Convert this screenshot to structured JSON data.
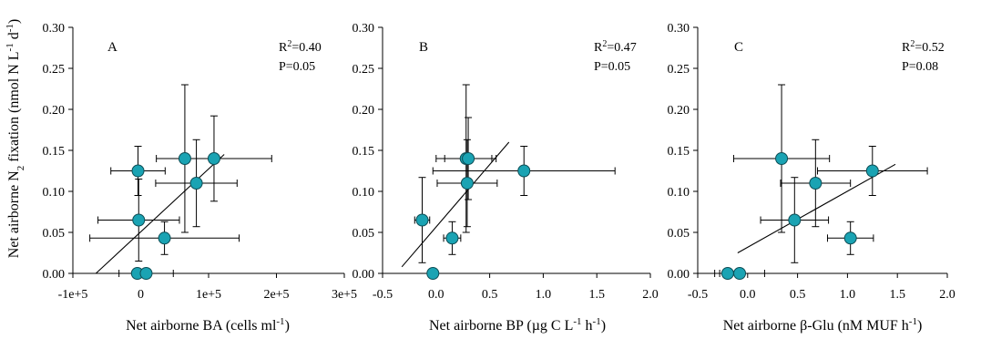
{
  "figure": {
    "ylabel_main": "Net airborne N",
    "ylabel_sub": "2",
    "ylabel_mid": " fixation (nmol N L",
    "ylabel_sup1": "-1",
    "ylabel_mid2": " d",
    "ylabel_sup2": "-1",
    "ylabel_end": ")"
  },
  "colors": {
    "marker_fill": "#1aa3b3",
    "marker_edge": "#0d4d55",
    "line": "#000000"
  },
  "chart_data": [
    {
      "type": "scatter",
      "panel": "A",
      "stats": {
        "r2_label": "R",
        "r2_sup": "2",
        "r2_value": "=0.40",
        "p": "P=0.05"
      },
      "xlabel": {
        "prefix": "Net airborne BA (cells ml",
        "sup": "-1",
        "suffix": ")"
      },
      "xlim": [
        -100000,
        300000
      ],
      "ylim": [
        0,
        0.3
      ],
      "xticks": [
        -100000,
        0,
        100000,
        200000,
        300000
      ],
      "xtick_labels": [
        "-1e+5",
        "0",
        "1e+5",
        "2e+5",
        "3e+5"
      ],
      "yticks": [
        0,
        0.05,
        0.1,
        0.15,
        0.2,
        0.25,
        0.3
      ],
      "ytick_labels": [
        "0.00",
        "0.05",
        "0.10",
        "0.15",
        "0.20",
        "0.25",
        "0.30"
      ],
      "points": [
        {
          "x": -4000,
          "y": 0.125,
          "xerr": 40000,
          "yerr": 0.03
        },
        {
          "x": -3000,
          "y": 0.065,
          "xerr": 60000,
          "yerr": 0.05
        },
        {
          "x": -5000,
          "y": 0.0,
          "xerr": 0,
          "yerr": 0
        },
        {
          "x": 8000,
          "y": 0.0,
          "xerr": 40000,
          "yerr": 0
        },
        {
          "x": 35000,
          "y": 0.043,
          "xerr": 110000,
          "yerr": 0.02
        },
        {
          "x": 65000,
          "y": 0.14,
          "xerr": 0,
          "yerr": 0.09
        },
        {
          "x": 82000,
          "y": 0.11,
          "xerr": 60000,
          "yerr": 0.053
        },
        {
          "x": 108000,
          "y": 0.14,
          "xerr": 85000,
          "yerr": 0.052
        }
      ],
      "fit": {
        "x": [
          -66000,
          123000
        ],
        "y": [
          0.0,
          0.145
        ]
      }
    },
    {
      "type": "scatter",
      "panel": "B",
      "stats": {
        "r2_label": "R",
        "r2_sup": "2",
        "r2_value": "=0.47",
        "p": "P=0.05"
      },
      "xlabel": {
        "prefix": "Net airborne BP (",
        "mu": "µg C L",
        "sup": "-1",
        "mid": " h",
        "sup2": "-1",
        "suffix": ")"
      },
      "xlim": [
        -0.5,
        2.0
      ],
      "ylim": [
        0,
        0.3
      ],
      "xticks": [
        -0.5,
        0.0,
        0.5,
        1.0,
        1.5,
        2.0
      ],
      "xtick_labels": [
        "-0.5",
        "0.0",
        "0.5",
        "1.0",
        "1.5",
        "2.0"
      ],
      "yticks": [
        0,
        0.05,
        0.1,
        0.15,
        0.2,
        0.25,
        0.3
      ],
      "ytick_labels": [
        "0.00",
        "0.05",
        "0.10",
        "0.15",
        "0.20",
        "0.25",
        "0.30"
      ],
      "points": [
        {
          "x": -0.13,
          "y": 0.065,
          "xerr": 0.07,
          "yerr": 0.052
        },
        {
          "x": -0.03,
          "y": 0.0,
          "xerr": 0,
          "yerr": 0
        },
        {
          "x": 0.15,
          "y": 0.043,
          "xerr": 0.08,
          "yerr": 0.02
        },
        {
          "x": 0.28,
          "y": 0.14,
          "xerr": 0.28,
          "yerr": 0.09
        },
        {
          "x": 0.3,
          "y": 0.14,
          "xerr": 0.22,
          "yerr": 0.05
        },
        {
          "x": 0.29,
          "y": 0.11,
          "xerr": 0.28,
          "yerr": 0.053
        },
        {
          "x": 0.82,
          "y": 0.125,
          "xerr": 0.85,
          "yerr": 0.03
        }
      ],
      "fit": {
        "x": [
          -0.32,
          0.68
        ],
        "y": [
          0.008,
          0.16
        ]
      }
    },
    {
      "type": "scatter",
      "panel": "C",
      "stats": {
        "r2_label": "R",
        "r2_sup": "2",
        "r2_value": "=0.52",
        "p": "P=0.08"
      },
      "xlabel": {
        "prefix": "Net airborne ",
        "beta": "β-Glu (nM MUF h",
        "sup": "-1",
        "suffix": ")"
      },
      "xlim": [
        -0.5,
        2.0
      ],
      "ylim": [
        0,
        0.3
      ],
      "xticks": [
        -0.5,
        0.0,
        0.5,
        1.0,
        1.5,
        2.0
      ],
      "xtick_labels": [
        "-0.5",
        "0.0",
        "0.5",
        "1.0",
        "1.5",
        "2.0"
      ],
      "yticks": [
        0,
        0.05,
        0.1,
        0.15,
        0.2,
        0.25,
        0.3
      ],
      "ytick_labels": [
        "0.00",
        "0.05",
        "0.10",
        "0.15",
        "0.20",
        "0.25",
        "0.30"
      ],
      "points": [
        {
          "x": -0.2,
          "y": 0.0,
          "xerr": 0.08,
          "yerr": 0
        },
        {
          "x": -0.08,
          "y": 0.0,
          "xerr": 0.25,
          "yerr": 0
        },
        {
          "x": 0.47,
          "y": 0.065,
          "xerr": 0.34,
          "yerr": 0.052
        },
        {
          "x": 0.34,
          "y": 0.14,
          "xerr": 0.48,
          "yerr": 0.09
        },
        {
          "x": 0.68,
          "y": 0.11,
          "xerr": 0.35,
          "yerr": 0.053
        },
        {
          "x": 1.03,
          "y": 0.043,
          "xerr": 0.23,
          "yerr": 0.02
        },
        {
          "x": 1.25,
          "y": 0.125,
          "xerr": 0.55,
          "yerr": 0.03
        }
      ],
      "fit": {
        "x": [
          -0.1,
          1.48
        ],
        "y": [
          0.025,
          0.133
        ]
      }
    }
  ]
}
